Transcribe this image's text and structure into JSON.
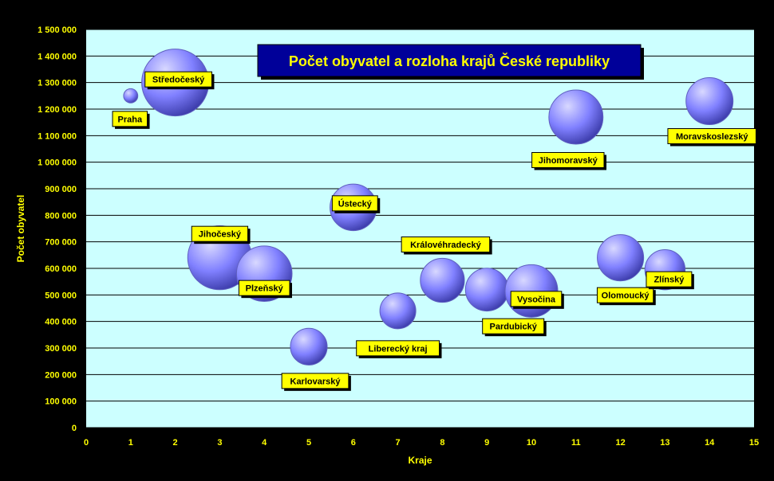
{
  "colors": {
    "frame": "#000000",
    "plot_bg": "#ccffff",
    "axis_text": "#ffff00",
    "gridline": "#000000",
    "bubble": "#8080ff",
    "bubble_highlight": "#d8d8ff",
    "bubble_shadow": "#3a3aa8",
    "label_bg": "#ffff00",
    "label_text": "#000000",
    "title_bg": "#000099",
    "title_text": "#ffff00"
  },
  "chart_data": {
    "type": "bubble",
    "title": "Počet obyvatel a rozloha krajů České republiky",
    "xlabel": "Kraje",
    "ylabel": "Počet obyvatel",
    "xlim": [
      0,
      15
    ],
    "ylim": [
      0,
      1500000
    ],
    "x_ticks": [
      "0",
      "1",
      "2",
      "3",
      "4",
      "5",
      "6",
      "7",
      "8",
      "9",
      "10",
      "11",
      "12",
      "13",
      "14",
      "15"
    ],
    "y_ticks": [
      "0",
      "100 000",
      "200 000",
      "300 000",
      "400 000",
      "500 000",
      "600 000",
      "700 000",
      "800 000",
      "900 000",
      "1 000 000",
      "1 100 000",
      "1 200 000",
      "1 300 000",
      "1 400 000",
      "1 500 000"
    ],
    "grid": true,
    "points": [
      {
        "label": "Praha",
        "x": 1,
        "y": 1250000,
        "size": 496
      },
      {
        "label": "Středočeský",
        "x": 2,
        "y": 1300000,
        "size": 11015
      },
      {
        "label": "Jihočeský",
        "x": 3,
        "y": 640000,
        "size": 10057
      },
      {
        "label": "Plzeňský",
        "x": 4,
        "y": 580000,
        "size": 7561
      },
      {
        "label": "Karlovarský",
        "x": 5,
        "y": 305000,
        "size": 3314
      },
      {
        "label": "Ústecký",
        "x": 6,
        "y": 830000,
        "size": 5335
      },
      {
        "label": "Liberecký kraj",
        "x": 7,
        "y": 440000,
        "size": 3163
      },
      {
        "label": "Královéhradecký",
        "x": 8,
        "y": 555000,
        "size": 4759
      },
      {
        "label": "Pardubický",
        "x": 9,
        "y": 520000,
        "size": 4519
      },
      {
        "label": "Vysočina",
        "x": 10,
        "y": 515000,
        "size": 6796
      },
      {
        "label": "Jihomoravský",
        "x": 11,
        "y": 1170000,
        "size": 7196
      },
      {
        "label": "Olomoucký",
        "x": 12,
        "y": 640000,
        "size": 5267
      },
      {
        "label": "Zlínský",
        "x": 13,
        "y": 595000,
        "size": 3964
      },
      {
        "label": "Moravskoslezský",
        "x": 14,
        "y": 1230000,
        "size": 5427
      }
    ]
  }
}
